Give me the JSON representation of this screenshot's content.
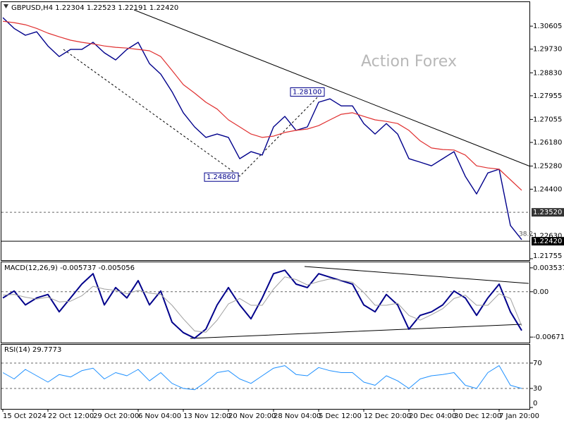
{
  "chart_data": [
    {
      "type": "line",
      "title": "GBPUSD,H4",
      "header_values": [
        "1.22304",
        "1.22523",
        "1.22191",
        "1.22420"
      ],
      "watermark": "Action Forex",
      "fib_label": "38.2",
      "ylim": [
        1.217,
        1.3152
      ],
      "yticks": [
        1.30605,
        {
          "value": 1.2973,
          "label": "1.29730"
        },
        {
          "value": 1.2883,
          "label": "1.28830"
        },
        1.27955,
        1.27055,
        {
          "value": 1.2618,
          "label": "1.26180"
        },
        {
          "value": 1.2528,
          "label": "1.25280"
        },
        {
          "value": 1.244,
          "label": "1.24400"
        },
        {
          "value": 1.2263,
          "label": "1.22630"
        },
        1.21755
      ],
      "levels": [
        {
          "value": 1.2352,
          "label": "1.23520",
          "style": "dashed"
        },
        {
          "value": 1.2242,
          "label": "1.22420",
          "style": "solid"
        }
      ],
      "annotations": [
        {
          "value": 1.2486,
          "label": "1.24860"
        },
        {
          "value": 1.281,
          "label": "1.28100"
        }
      ],
      "series": [
        {
          "color": "#00008b",
          "width": 1.4,
          "values": [
            1.3093,
            1.3052,
            1.3026,
            1.3039,
            1.2985,
            1.2945,
            1.2972,
            1.2972,
            1.2999,
            1.2959,
            1.2932,
            1.2972,
            1.2999,
            1.2918,
            1.2878,
            1.2811,
            1.2731,
            1.2677,
            1.2637,
            1.265,
            1.2637,
            1.2556,
            1.2583,
            1.257,
            1.2677,
            1.2717,
            1.2664,
            1.2677,
            1.2771,
            1.2784,
            1.2757,
            1.2757,
            1.269,
            1.265,
            1.269,
            1.265,
            1.2556,
            1.2543,
            1.2529,
            1.2556,
            1.2583,
            1.2489,
            1.2422,
            1.2502,
            1.2516,
            1.2302,
            1.2248
          ]
        },
        {
          "color": "#e03030",
          "width": 1.2,
          "values": [
            1.3079,
            1.3074,
            1.3066,
            1.3052,
            1.3034,
            1.302,
            1.3007,
            1.2999,
            1.2993,
            1.2985,
            1.298,
            1.2977,
            1.2972,
            1.2967,
            1.2945,
            1.2892,
            1.2838,
            1.2806,
            1.2771,
            1.2745,
            1.2704,
            1.2677,
            1.265,
            1.2637,
            1.2642,
            1.2656,
            1.2664,
            1.2669,
            1.2682,
            1.2704,
            1.2725,
            1.2731,
            1.2717,
            1.2704,
            1.2698,
            1.269,
            1.2664,
            1.2624,
            1.2597,
            1.2591,
            1.2589,
            1.257,
            1.2529,
            1.2521,
            1.2516,
            1.2476,
            1.2436
          ]
        }
      ]
    },
    {
      "type": "line",
      "title": "MACD(12,26,9)",
      "header_values": [
        "-0.005737",
        "-0.005056"
      ],
      "ylim": [
        -0.00753,
        0.00436
      ],
      "yticks": [
        0.003537,
        {
          "value": 0,
          "label": "0.00"
        },
        -0.006711
      ],
      "levels": [
        0
      ],
      "series": [
        {
          "color": "#00008b",
          "width": 2,
          "values": [
            -0.00092,
            0.0001,
            -0.00195,
            -0.00092,
            -0.00041,
            -0.00297,
            -0.00092,
            0.00113,
            0.00267,
            -0.00195,
            0.00062,
            -0.00092,
            0.00164,
            -0.00195,
            0.0001,
            -0.00451,
            -0.00605,
            -0.00687,
            -0.00554,
            -0.00195,
            0.00062,
            -0.00195,
            -0.004,
            -0.00092,
            0.00267,
            0.00318,
            0.00113,
            0.00062,
            0.00267,
            0.00215,
            0.00164,
            0.00113,
            -0.00195,
            -0.00297,
            -0.00041,
            -0.00195,
            -0.00554,
            -0.00349,
            -0.00297,
            -0.00195,
            0.0001,
            -0.00092,
            -0.00349,
            -0.00092,
            0.00113,
            -0.00297,
            -0.00574
          ]
        },
        {
          "color": "#a0a0a0",
          "width": 1,
          "values": [
            -0.0005,
            -0.0004,
            -0.0008,
            -0.0011,
            -0.0008,
            -0.0015,
            -0.0014,
            -0.0006,
            0.0008,
            0.0004,
            0.0002,
            -0.0003,
            0.0002,
            -0.0002,
            -0.0004,
            -0.002,
            -0.004,
            -0.0058,
            -0.006,
            -0.0042,
            -0.0018,
            -0.001,
            -0.002,
            -0.002,
            0.0004,
            0.0022,
            0.0018,
            0.001,
            0.0015,
            0.0019,
            0.0017,
            0.0014,
            -0.0001,
            -0.002,
            -0.002,
            -0.0017,
            -0.0035,
            -0.0042,
            -0.0034,
            -0.0025,
            -0.001,
            -0.0005,
            -0.002,
            -0.002,
            -0.0003,
            -0.001,
            -0.00506
          ]
        }
      ]
    },
    {
      "type": "line",
      "title": "RSI(14)",
      "header_values": [
        "29.7773"
      ],
      "ylim": [
        0,
        100
      ],
      "yticks": [
        70,
        30,
        0
      ],
      "levels": [
        70,
        30
      ],
      "categories": [
        "15 Oct 2024",
        null,
        null,
        null,
        "22 Oct 12:00",
        null,
        null,
        null,
        "29 Oct 20:00",
        null,
        null,
        null,
        "6 Nov 04:00",
        null,
        null,
        null,
        "13 Nov 12:00",
        null,
        null,
        null,
        "20 Nov 20:00",
        null,
        null,
        null,
        "28 Nov 04:00",
        null,
        null,
        null,
        "5 Dec 12:00",
        null,
        null,
        null,
        "12 Dec 20:00",
        null,
        null,
        null,
        "20 Dec 04:00",
        null,
        null,
        null,
        "30 Dec 12:00",
        null,
        null,
        null,
        "7 Jan 20:00",
        null,
        null
      ],
      "series": [
        {
          "color": "#1e90ff",
          "width": 1,
          "values": [
            55,
            45,
            60,
            50,
            40,
            52,
            48,
            58,
            62,
            45,
            55,
            50,
            60,
            42,
            55,
            38,
            30,
            28,
            40,
            55,
            58,
            45,
            38,
            50,
            62,
            66,
            52,
            50,
            63,
            58,
            55,
            55,
            40,
            35,
            50,
            42,
            30,
            45,
            50,
            52,
            55,
            35,
            30,
            55,
            66,
            35,
            30
          ]
        }
      ]
    }
  ]
}
